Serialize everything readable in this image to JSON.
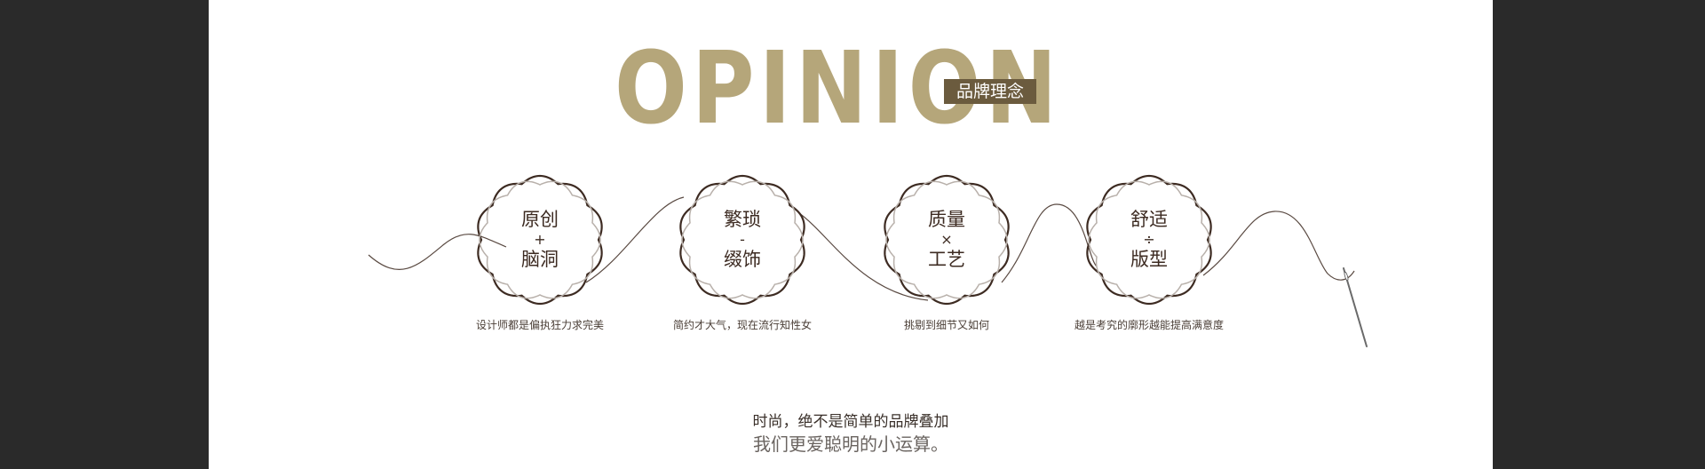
{
  "heading": {
    "title": "OPINION",
    "tag": "品牌理念"
  },
  "badges": [
    {
      "top": "原创",
      "op": "+",
      "bottom": "脑洞",
      "caption": "设计师都是偏执狂力求完美"
    },
    {
      "top": "繁琐",
      "op": "-",
      "bottom": "缀饰",
      "caption": "简约才大气，现在流行知性女"
    },
    {
      "top": "质量",
      "op": "×",
      "bottom": "工艺",
      "caption": "挑剔到细节又如何"
    },
    {
      "top": "舒适",
      "op": "÷",
      "bottom": "版型",
      "caption": "越是考究的廓形越能提高满意度"
    }
  ],
  "footer": {
    "line1": "时尚，绝不是简单的品牌叠加",
    "line2": "我们更爱聪明的小运算。"
  },
  "colors": {
    "gold": "#b5a67a",
    "tag_bg": "#6b5b3e",
    "badge_outline": "#3d2b22",
    "badge_inner": "#b8b0aa"
  },
  "icons": [
    "needle-icon",
    "thread-icon"
  ]
}
